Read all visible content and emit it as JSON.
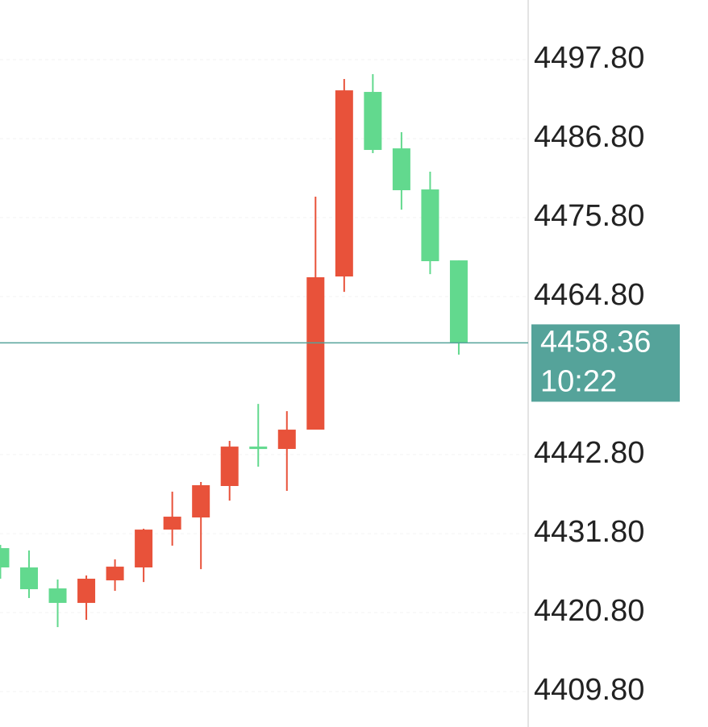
{
  "chart_data": {
    "type": "candlestick",
    "categories": [
      null,
      null,
      null,
      null,
      null,
      null,
      null,
      null,
      null,
      null,
      null,
      null,
      null,
      null,
      null,
      null,
      null
    ],
    "series": [
      {
        "open": [
          4429.78,
          4427.09,
          4424.17,
          4422.15,
          4425.29,
          4427.09,
          4432.36,
          4434.05,
          4438.43,
          4443.92,
          4443.59,
          4446.28,
          4467.61,
          4493.31,
          4485.45,
          4479.73,
          4469.85
        ],
        "high": [
          4430.23,
          4429.45,
          4425.41,
          4425.97,
          4428.21,
          4432.48,
          4437.64,
          4438.99,
          4444.71,
          4449.87,
          4448.86,
          4478.72,
          4495.11,
          4495.78,
          4487.7,
          4482.2,
          4469.85
        ],
        "low": [
          4425.52,
          4422.83,
          4418.78,
          4419.79,
          4423.83,
          4425.06,
          4430.12,
          4426.86,
          4436.4,
          4441.12,
          4437.75,
          4446.28,
          4465.47,
          4484.78,
          4476.92,
          4467.94,
          4456.72
        ],
        "close": [
          4427.09,
          4424.06,
          4422.15,
          4425.52,
          4427.2,
          4432.36,
          4434.16,
          4438.54,
          4443.92,
          4443.59,
          4446.28,
          4467.5,
          4493.53,
          4485.23,
          4479.62,
          4469.74,
          4458.36
        ]
      }
    ],
    "up_color": "#e8523a",
    "down_color": "#62d98e",
    "ylim": [
      4404.87,
      4506.11
    ],
    "yticks": [
      {
        "value": 4409.8,
        "label": "4409.80"
      },
      {
        "value": 4420.8,
        "label": "4420.80"
      },
      {
        "value": 4431.8,
        "label": "4431.80"
      },
      {
        "value": 4442.8,
        "label": "4442.80"
      },
      {
        "value": 4464.8,
        "label": "4464.80"
      },
      {
        "value": 4475.8,
        "label": "4475.80"
      },
      {
        "value": 4486.8,
        "label": "4486.80"
      },
      {
        "value": 4497.8,
        "label": "4497.80"
      }
    ],
    "current_price": 4458.36,
    "current_time": "10:22",
    "price_line_color": "#55a39a",
    "grid": true
  }
}
